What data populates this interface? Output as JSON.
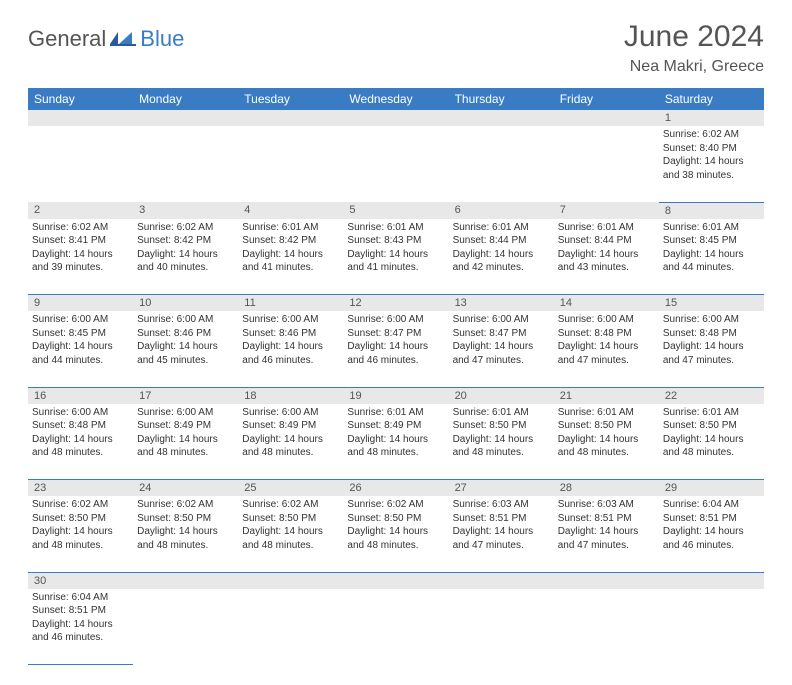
{
  "logo": {
    "text1": "General",
    "text2": "Blue"
  },
  "title": "June 2024",
  "location": "Nea Makri, Greece",
  "colors": {
    "header_bg": "#3a7cc4",
    "header_text": "#ffffff",
    "daynum_bg": "#e8e8e8",
    "cell_border": "#3a7cc4",
    "text": "#333333",
    "title_text": "#555555"
  },
  "typography": {
    "title_fontsize": 30,
    "location_fontsize": 16,
    "dayheader_fontsize": 12,
    "daynum_fontsize": 11,
    "cell_fontsize": 10
  },
  "day_headers": [
    "Sunday",
    "Monday",
    "Tuesday",
    "Wednesday",
    "Thursday",
    "Friday",
    "Saturday"
  ],
  "weeks": [
    {
      "nums": [
        "",
        "",
        "",
        "",
        "",
        "",
        "1"
      ],
      "cells": [
        null,
        null,
        null,
        null,
        null,
        null,
        {
          "sunrise": "6:02 AM",
          "sunset": "8:40 PM",
          "daylight": "14 hours and 38 minutes."
        }
      ]
    },
    {
      "nums": [
        "2",
        "3",
        "4",
        "5",
        "6",
        "7",
        "8"
      ],
      "cells": [
        {
          "sunrise": "6:02 AM",
          "sunset": "8:41 PM",
          "daylight": "14 hours and 39 minutes."
        },
        {
          "sunrise": "6:02 AM",
          "sunset": "8:42 PM",
          "daylight": "14 hours and 40 minutes."
        },
        {
          "sunrise": "6:01 AM",
          "sunset": "8:42 PM",
          "daylight": "14 hours and 41 minutes."
        },
        {
          "sunrise": "6:01 AM",
          "sunset": "8:43 PM",
          "daylight": "14 hours and 41 minutes."
        },
        {
          "sunrise": "6:01 AM",
          "sunset": "8:44 PM",
          "daylight": "14 hours and 42 minutes."
        },
        {
          "sunrise": "6:01 AM",
          "sunset": "8:44 PM",
          "daylight": "14 hours and 43 minutes."
        },
        {
          "sunrise": "6:01 AM",
          "sunset": "8:45 PM",
          "daylight": "14 hours and 44 minutes."
        }
      ]
    },
    {
      "nums": [
        "9",
        "10",
        "11",
        "12",
        "13",
        "14",
        "15"
      ],
      "cells": [
        {
          "sunrise": "6:00 AM",
          "sunset": "8:45 PM",
          "daylight": "14 hours and 44 minutes."
        },
        {
          "sunrise": "6:00 AM",
          "sunset": "8:46 PM",
          "daylight": "14 hours and 45 minutes."
        },
        {
          "sunrise": "6:00 AM",
          "sunset": "8:46 PM",
          "daylight": "14 hours and 46 minutes."
        },
        {
          "sunrise": "6:00 AM",
          "sunset": "8:47 PM",
          "daylight": "14 hours and 46 minutes."
        },
        {
          "sunrise": "6:00 AM",
          "sunset": "8:47 PM",
          "daylight": "14 hours and 47 minutes."
        },
        {
          "sunrise": "6:00 AM",
          "sunset": "8:48 PM",
          "daylight": "14 hours and 47 minutes."
        },
        {
          "sunrise": "6:00 AM",
          "sunset": "8:48 PM",
          "daylight": "14 hours and 47 minutes."
        }
      ]
    },
    {
      "nums": [
        "16",
        "17",
        "18",
        "19",
        "20",
        "21",
        "22"
      ],
      "cells": [
        {
          "sunrise": "6:00 AM",
          "sunset": "8:48 PM",
          "daylight": "14 hours and 48 minutes."
        },
        {
          "sunrise": "6:00 AM",
          "sunset": "8:49 PM",
          "daylight": "14 hours and 48 minutes."
        },
        {
          "sunrise": "6:00 AM",
          "sunset": "8:49 PM",
          "daylight": "14 hours and 48 minutes."
        },
        {
          "sunrise": "6:01 AM",
          "sunset": "8:49 PM",
          "daylight": "14 hours and 48 minutes."
        },
        {
          "sunrise": "6:01 AM",
          "sunset": "8:50 PM",
          "daylight": "14 hours and 48 minutes."
        },
        {
          "sunrise": "6:01 AM",
          "sunset": "8:50 PM",
          "daylight": "14 hours and 48 minutes."
        },
        {
          "sunrise": "6:01 AM",
          "sunset": "8:50 PM",
          "daylight": "14 hours and 48 minutes."
        }
      ]
    },
    {
      "nums": [
        "23",
        "24",
        "25",
        "26",
        "27",
        "28",
        "29"
      ],
      "cells": [
        {
          "sunrise": "6:02 AM",
          "sunset": "8:50 PM",
          "daylight": "14 hours and 48 minutes."
        },
        {
          "sunrise": "6:02 AM",
          "sunset": "8:50 PM",
          "daylight": "14 hours and 48 minutes."
        },
        {
          "sunrise": "6:02 AM",
          "sunset": "8:50 PM",
          "daylight": "14 hours and 48 minutes."
        },
        {
          "sunrise": "6:02 AM",
          "sunset": "8:50 PM",
          "daylight": "14 hours and 48 minutes."
        },
        {
          "sunrise": "6:03 AM",
          "sunset": "8:51 PM",
          "daylight": "14 hours and 47 minutes."
        },
        {
          "sunrise": "6:03 AM",
          "sunset": "8:51 PM",
          "daylight": "14 hours and 47 minutes."
        },
        {
          "sunrise": "6:04 AM",
          "sunset": "8:51 PM",
          "daylight": "14 hours and 46 minutes."
        }
      ]
    },
    {
      "nums": [
        "30",
        "",
        "",
        "",
        "",
        "",
        ""
      ],
      "cells": [
        {
          "sunrise": "6:04 AM",
          "sunset": "8:51 PM",
          "daylight": "14 hours and 46 minutes."
        },
        null,
        null,
        null,
        null,
        null,
        null
      ]
    }
  ],
  "labels": {
    "sunrise": "Sunrise:",
    "sunset": "Sunset:",
    "daylight": "Daylight:"
  }
}
